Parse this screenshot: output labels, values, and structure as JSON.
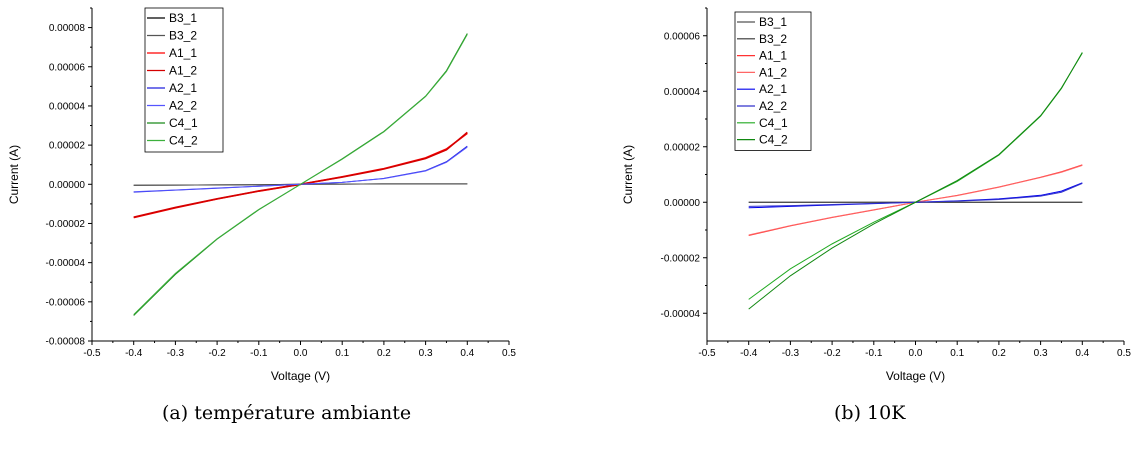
{
  "captions": {
    "a": "(a) température ambiante",
    "b": "(b) 10K"
  },
  "chart_data": [
    {
      "type": "line",
      "title": "",
      "xlabel": "Voltage (V)",
      "ylabel": "Current (A)",
      "xlim": [
        -0.5,
        0.5
      ],
      "ylim": [
        -8e-05,
        9e-05
      ],
      "xticks": [
        "-0.5",
        "-0.4",
        "-0.3",
        "-0.2",
        "-0.1",
        "0.0",
        "0.1",
        "0.2",
        "0.3",
        "0.4",
        "0.5"
      ],
      "yticks": [
        "-0.00008",
        "-0.00006",
        "-0.00004",
        "-0.00002",
        "0.00000",
        "0.00002",
        "0.00004",
        "0.00006",
        "0.00008"
      ],
      "grid": false,
      "legend_position": "top-left",
      "x": [
        -0.4,
        -0.3,
        -0.2,
        -0.1,
        0.0,
        0.1,
        0.2,
        0.3,
        0.35,
        0.4
      ],
      "series": [
        {
          "name": "B3_1",
          "color": "#000000",
          "values": [
            -5e-07,
            -4e-07,
            -3e-07,
            -2e-07,
            0.0,
            1e-07,
            2e-07,
            2e-07,
            2e-07,
            2e-07
          ]
        },
        {
          "name": "B3_2",
          "color": "#555555",
          "values": [
            -5e-07,
            -4e-07,
            -3e-07,
            -2e-07,
            0.0,
            1e-07,
            2e-07,
            2e-07,
            2e-07,
            2e-07
          ]
        },
        {
          "name": "A1_1",
          "color": "#ff0000",
          "values": [
            -1.7e-05,
            -1.2e-05,
            -7.5e-06,
            -3.5e-06,
            0.0,
            3.8e-06,
            8e-06,
            1.35e-05,
            1.8e-05,
            2.6e-05
          ]
        },
        {
          "name": "A1_2",
          "color": "#d40000",
          "values": [
            -1.68e-05,
            -1.18e-05,
            -7.4e-06,
            -3.4e-06,
            0.0,
            3.7e-06,
            7.8e-06,
            1.32e-05,
            1.76e-05,
            2.65e-05
          ]
        },
        {
          "name": "A2_1",
          "color": "#2222dd",
          "values": [
            -4e-06,
            -3e-06,
            -2e-06,
            -1e-06,
            0.0,
            1e-06,
            3e-06,
            7e-06,
            1.15e-05,
            1.95e-05
          ]
        },
        {
          "name": "A2_2",
          "color": "#5555ff",
          "values": [
            -3.8e-06,
            -2.9e-06,
            -1.9e-06,
            -1e-06,
            0.0,
            1e-06,
            2.9e-06,
            6.8e-06,
            1.12e-05,
            1.9e-05
          ]
        },
        {
          "name": "C4_1",
          "color": "#1a8a1a",
          "values": [
            -6.7e-05,
            -4.6e-05,
            -2.8e-05,
            -1.3e-05,
            0.0,
            1.3e-05,
            2.7e-05,
            4.5e-05,
            5.8e-05,
            7.7e-05
          ]
        },
        {
          "name": "C4_2",
          "color": "#3cb03c",
          "values": [
            -6.65e-05,
            -4.55e-05,
            -2.78e-05,
            -1.28e-05,
            0.0,
            1.28e-05,
            2.68e-05,
            4.48e-05,
            5.76e-05,
            7.65e-05
          ]
        }
      ]
    },
    {
      "type": "line",
      "title": "",
      "xlabel": "Voltage (V)",
      "ylabel": "Current (A)",
      "xlim": [
        -0.5,
        0.5
      ],
      "ylim": [
        -5e-05,
        7e-05
      ],
      "xticks": [
        "-0.5",
        "-0.4",
        "-0.3",
        "-0.2",
        "-0.1",
        "0.0",
        "0.1",
        "0.2",
        "0.3",
        "0.4",
        "0.5"
      ],
      "yticks": [
        "-0.00004",
        "-0.00002",
        "0.00000",
        "0.00002",
        "0.00004",
        "0.00006"
      ],
      "grid": false,
      "legend_position": "top-left",
      "x": [
        -0.4,
        -0.3,
        -0.2,
        -0.1,
        0.0,
        0.1,
        0.2,
        0.3,
        0.35,
        0.4
      ],
      "series": [
        {
          "name": "B3_1",
          "color": "#555555",
          "values": [
            0.0,
            0.0,
            0.0,
            0.0,
            0.0,
            0.0,
            0.0,
            0.0,
            0.0,
            0.0
          ]
        },
        {
          "name": "B3_2",
          "color": "#333333",
          "values": [
            0.0,
            0.0,
            0.0,
            0.0,
            0.0,
            0.0,
            0.0,
            0.0,
            0.0,
            0.0
          ]
        },
        {
          "name": "A1_1",
          "color": "#ff3333",
          "values": [
            -1.2e-05,
            -8.5e-06,
            -5.5e-06,
            -2.8e-06,
            0.0,
            2.5e-06,
            5.5e-06,
            9e-06,
            1.1e-05,
            1.35e-05
          ]
        },
        {
          "name": "A1_2",
          "color": "#ff6666",
          "values": [
            -1.18e-05,
            -8.4e-06,
            -5.4e-06,
            -2.7e-06,
            0.0,
            2.4e-06,
            5.4e-06,
            8.9e-06,
            1.08e-05,
            1.33e-05
          ]
        },
        {
          "name": "A2_1",
          "color": "#0000ee",
          "values": [
            -2e-06,
            -1.5e-06,
            -1e-06,
            -5e-07,
            0.0,
            5e-07,
            1.2e-06,
            2.5e-06,
            4e-06,
            7e-06
          ]
        },
        {
          "name": "A2_2",
          "color": "#3333cc",
          "values": [
            -1.5e-06,
            -1.2e-06,
            -8e-07,
            -4e-07,
            0.0,
            4e-07,
            1e-06,
            2.2e-06,
            3.6e-06,
            6.8e-06
          ]
        },
        {
          "name": "C4_1",
          "color": "#22aa22",
          "values": [
            -3.5e-05,
            -2.4e-05,
            -1.5e-05,
            -7.2e-06,
            0.0,
            7.5e-06,
            1.7e-05,
            3.1e-05,
            4.1e-05,
            5.4e-05
          ]
        },
        {
          "name": "C4_2",
          "color": "#118811",
          "values": [
            -3.85e-05,
            -2.65e-05,
            -1.65e-05,
            -7.8e-06,
            0.0,
            7.8e-06,
            1.72e-05,
            3.12e-05,
            4.12e-05,
            5.38e-05
          ]
        }
      ]
    }
  ]
}
